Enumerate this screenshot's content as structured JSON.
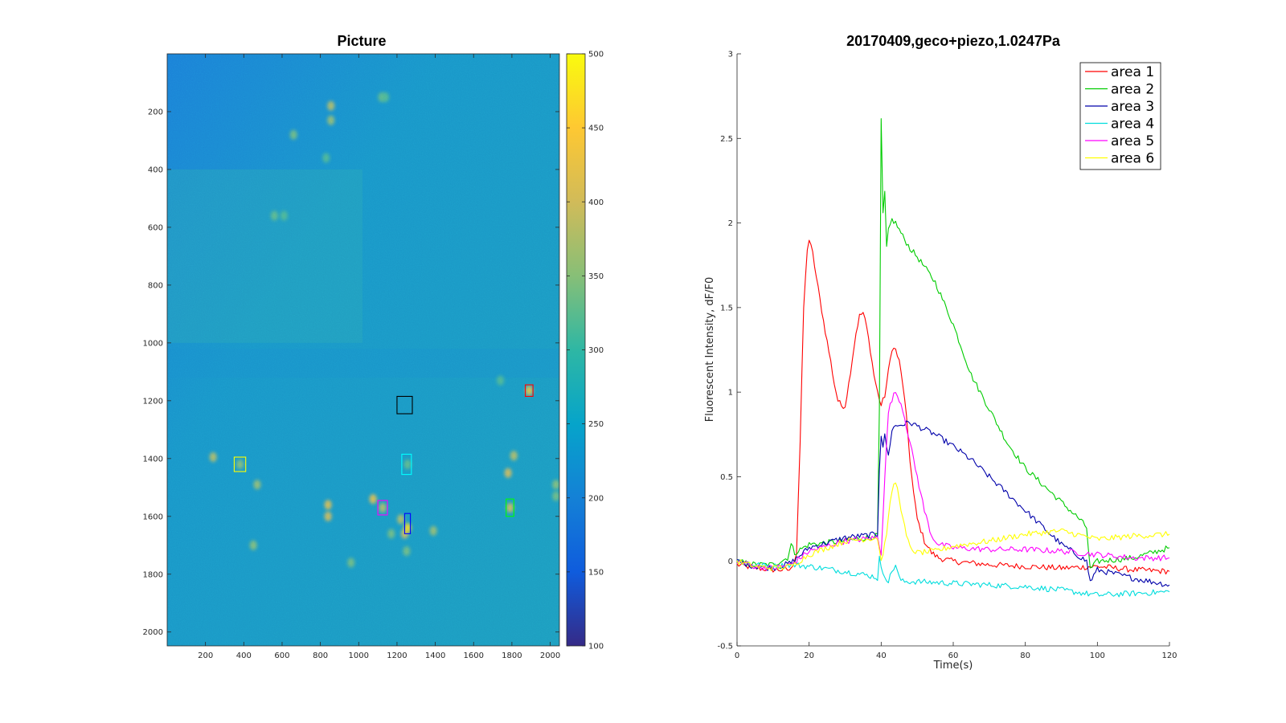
{
  "chart_data": [
    {
      "type": "heatmap",
      "title": "Picture",
      "xticks": [
        200,
        400,
        600,
        800,
        1000,
        1200,
        1400,
        1600,
        1800,
        2000
      ],
      "yticks": [
        200,
        400,
        600,
        800,
        1000,
        1200,
        1400,
        1600,
        1800,
        2000
      ],
      "xlim": [
        0,
        2048
      ],
      "ylim": [
        0,
        2048
      ],
      "y_direction": "down",
      "colorbar": {
        "ticks": [
          100,
          150,
          200,
          250,
          300,
          350,
          400,
          450,
          500
        ],
        "range": [
          100,
          500
        ],
        "colormap": [
          "#352a87",
          "#0f5cdd",
          "#1481d6",
          "#06a4ca",
          "#2eb7a4",
          "#87bf77",
          "#d1bb59",
          "#fec832",
          "#f9fb0e"
        ]
      },
      "background_level": 235,
      "rois": [
        {
          "x": 1240,
          "y": 1215,
          "w": 80,
          "h": 60,
          "color": "#000000"
        },
        {
          "x": 1890,
          "y": 1165,
          "w": 40,
          "h": 40,
          "color": "#ff0000"
        },
        {
          "x": 380,
          "y": 1420,
          "w": 60,
          "h": 50,
          "color": "#ffff00"
        },
        {
          "x": 1250,
          "y": 1420,
          "w": 50,
          "h": 70,
          "color": "#00ffff"
        },
        {
          "x": 1125,
          "y": 1570,
          "w": 50,
          "h": 50,
          "color": "#ff00ff"
        },
        {
          "x": 1790,
          "y": 1570,
          "w": 40,
          "h": 60,
          "color": "#00ff00"
        },
        {
          "x": 1255,
          "y": 1625,
          "w": 30,
          "h": 70,
          "color": "#0000ff"
        }
      ],
      "bright_spots": [
        {
          "x": 1120,
          "y": 150,
          "v": 330
        },
        {
          "x": 1140,
          "y": 150,
          "v": 320
        },
        {
          "x": 855,
          "y": 180,
          "v": 380
        },
        {
          "x": 855,
          "y": 230,
          "v": 360
        },
        {
          "x": 660,
          "y": 280,
          "v": 340
        },
        {
          "x": 830,
          "y": 360,
          "v": 320
        },
        {
          "x": 560,
          "y": 560,
          "v": 330
        },
        {
          "x": 610,
          "y": 560,
          "v": 320
        },
        {
          "x": 1740,
          "y": 1130,
          "v": 320
        },
        {
          "x": 1890,
          "y": 1165,
          "v": 430
        },
        {
          "x": 240,
          "y": 1395,
          "v": 380
        },
        {
          "x": 380,
          "y": 1420,
          "v": 350
        },
        {
          "x": 1255,
          "y": 1420,
          "v": 330
        },
        {
          "x": 1810,
          "y": 1390,
          "v": 380
        },
        {
          "x": 1780,
          "y": 1450,
          "v": 400
        },
        {
          "x": 470,
          "y": 1490,
          "v": 360
        },
        {
          "x": 2030,
          "y": 1490,
          "v": 350
        },
        {
          "x": 2030,
          "y": 1530,
          "v": 340
        },
        {
          "x": 840,
          "y": 1560,
          "v": 410
        },
        {
          "x": 840,
          "y": 1600,
          "v": 400
        },
        {
          "x": 1075,
          "y": 1540,
          "v": 420
        },
        {
          "x": 1125,
          "y": 1570,
          "v": 380
        },
        {
          "x": 1790,
          "y": 1570,
          "v": 400
        },
        {
          "x": 1220,
          "y": 1610,
          "v": 380
        },
        {
          "x": 1240,
          "y": 1660,
          "v": 400
        },
        {
          "x": 1255,
          "y": 1640,
          "v": 470
        },
        {
          "x": 1170,
          "y": 1660,
          "v": 340
        },
        {
          "x": 1390,
          "y": 1650,
          "v": 360
        },
        {
          "x": 1250,
          "y": 1720,
          "v": 340
        },
        {
          "x": 450,
          "y": 1700,
          "v": 350
        },
        {
          "x": 960,
          "y": 1760,
          "v": 340
        }
      ]
    },
    {
      "type": "line",
      "title": "20170409,geco+piezo,1.0247Pa",
      "xlabel": "Time(s)",
      "ylabel": "Fluorescent Intensity, dF/F0",
      "xlim": [
        0,
        120
      ],
      "ylim": [
        -0.5,
        3
      ],
      "xticks": [
        0,
        20,
        40,
        60,
        80,
        100,
        120
      ],
      "yticks": [
        -0.5,
        0,
        0.5,
        1,
        1.5,
        2,
        2.5,
        3
      ],
      "grid": false,
      "legend": "top-right",
      "series": [
        {
          "name": "area 1",
          "color": "#ff0000",
          "x": [
            0,
            5,
            10,
            15,
            16.5,
            17.5,
            18.5,
            19.5,
            20,
            21,
            22,
            23,
            24,
            25,
            26,
            27,
            28,
            29,
            30,
            31,
            32,
            33,
            34,
            35,
            36,
            37,
            38,
            39,
            40,
            41,
            42,
            43,
            44,
            45,
            46,
            47,
            48,
            49,
            50,
            52,
            54,
            56,
            60,
            70,
            80,
            90,
            100,
            110,
            120
          ],
          "y": [
            -0.02,
            -0.04,
            -0.05,
            -0.05,
            0.05,
            0.7,
            1.5,
            1.85,
            1.9,
            1.82,
            1.68,
            1.55,
            1.42,
            1.3,
            1.18,
            1.05,
            0.95,
            0.92,
            0.92,
            1.05,
            1.2,
            1.35,
            1.45,
            1.47,
            1.38,
            1.25,
            1.1,
            1.0,
            0.92,
            0.98,
            1.12,
            1.26,
            1.25,
            1.18,
            1.05,
            0.85,
            0.6,
            0.4,
            0.25,
            0.12,
            0.05,
            0.02,
            0.0,
            -0.02,
            -0.03,
            -0.04,
            -0.03,
            -0.05,
            -0.06
          ]
        },
        {
          "name": "area 2",
          "color": "#00cc00",
          "x": [
            0,
            5,
            10,
            14,
            15,
            16,
            20,
            30,
            39,
            39.5,
            40,
            40.5,
            41,
            41.5,
            42,
            43,
            44,
            46,
            48,
            50,
            55,
            60,
            65,
            70,
            75,
            80,
            85,
            90,
            95,
            97,
            98,
            100,
            110,
            120
          ],
          "y": [
            0.0,
            -0.02,
            -0.02,
            0.02,
            0.1,
            0.05,
            0.1,
            0.12,
            0.15,
            0.9,
            2.6,
            2.05,
            2.18,
            1.85,
            1.95,
            2.02,
            2.0,
            1.92,
            1.85,
            1.8,
            1.65,
            1.4,
            1.1,
            0.9,
            0.7,
            0.55,
            0.45,
            0.35,
            0.25,
            0.2,
            -0.05,
            0.0,
            0.02,
            0.08
          ]
        },
        {
          "name": "area 3",
          "color": "#0000aa",
          "x": [
            0,
            5,
            10,
            15,
            20,
            30,
            39,
            39.5,
            40,
            40.5,
            41,
            42,
            43,
            44,
            46,
            48,
            50,
            55,
            60,
            65,
            70,
            75,
            80,
            85,
            90,
            95,
            97,
            98,
            100,
            110,
            120
          ],
          "y": [
            0.0,
            -0.03,
            -0.04,
            -0.01,
            0.08,
            0.14,
            0.16,
            0.55,
            0.75,
            0.68,
            0.74,
            0.62,
            0.78,
            0.8,
            0.81,
            0.82,
            0.8,
            0.75,
            0.68,
            0.6,
            0.5,
            0.4,
            0.3,
            0.2,
            0.1,
            0.03,
            0.0,
            -0.12,
            -0.05,
            -0.1,
            -0.14
          ]
        },
        {
          "name": "area 4",
          "color": "#00dddd",
          "x": [
            0,
            5,
            10,
            15,
            20,
            30,
            38,
            39,
            39.5,
            40,
            41,
            42,
            43,
            44,
            45,
            46,
            50,
            60,
            70,
            80,
            90,
            100,
            110,
            120
          ],
          "y": [
            0.0,
            -0.02,
            -0.03,
            -0.02,
            -0.03,
            -0.06,
            -0.09,
            -0.1,
            0.02,
            -0.05,
            -0.08,
            -0.12,
            -0.06,
            -0.02,
            -0.1,
            -0.12,
            -0.12,
            -0.13,
            -0.14,
            -0.15,
            -0.17,
            -0.2,
            -0.19,
            -0.18
          ]
        },
        {
          "name": "area 5",
          "color": "#ff00ff",
          "x": [
            0,
            5,
            10,
            15,
            20,
            30,
            39,
            40,
            41,
            42,
            43,
            44,
            45,
            46,
            47,
            48,
            50,
            52,
            54,
            56,
            60,
            70,
            80,
            90,
            100,
            110,
            120
          ],
          "y": [
            0.0,
            -0.03,
            -0.04,
            -0.02,
            0.06,
            0.12,
            0.14,
            0.05,
            0.5,
            0.88,
            0.96,
            1.0,
            0.96,
            0.9,
            0.8,
            0.7,
            0.5,
            0.3,
            0.15,
            0.1,
            0.08,
            0.07,
            0.07,
            0.06,
            0.04,
            0.02,
            0.02
          ]
        },
        {
          "name": "area 6",
          "color": "#ffff00",
          "x": [
            0,
            5,
            10,
            15,
            20,
            30,
            39,
            40,
            41,
            42,
            43,
            44,
            45,
            46,
            47,
            48,
            50,
            55,
            60,
            70,
            80,
            90,
            100,
            110,
            120
          ],
          "y": [
            0.0,
            -0.03,
            -0.04,
            -0.03,
            0.04,
            0.12,
            0.14,
            0.0,
            0.1,
            0.25,
            0.42,
            0.47,
            0.38,
            0.25,
            0.15,
            0.08,
            0.05,
            0.06,
            0.09,
            0.12,
            0.16,
            0.18,
            0.13,
            0.15,
            0.16
          ]
        }
      ]
    }
  ]
}
